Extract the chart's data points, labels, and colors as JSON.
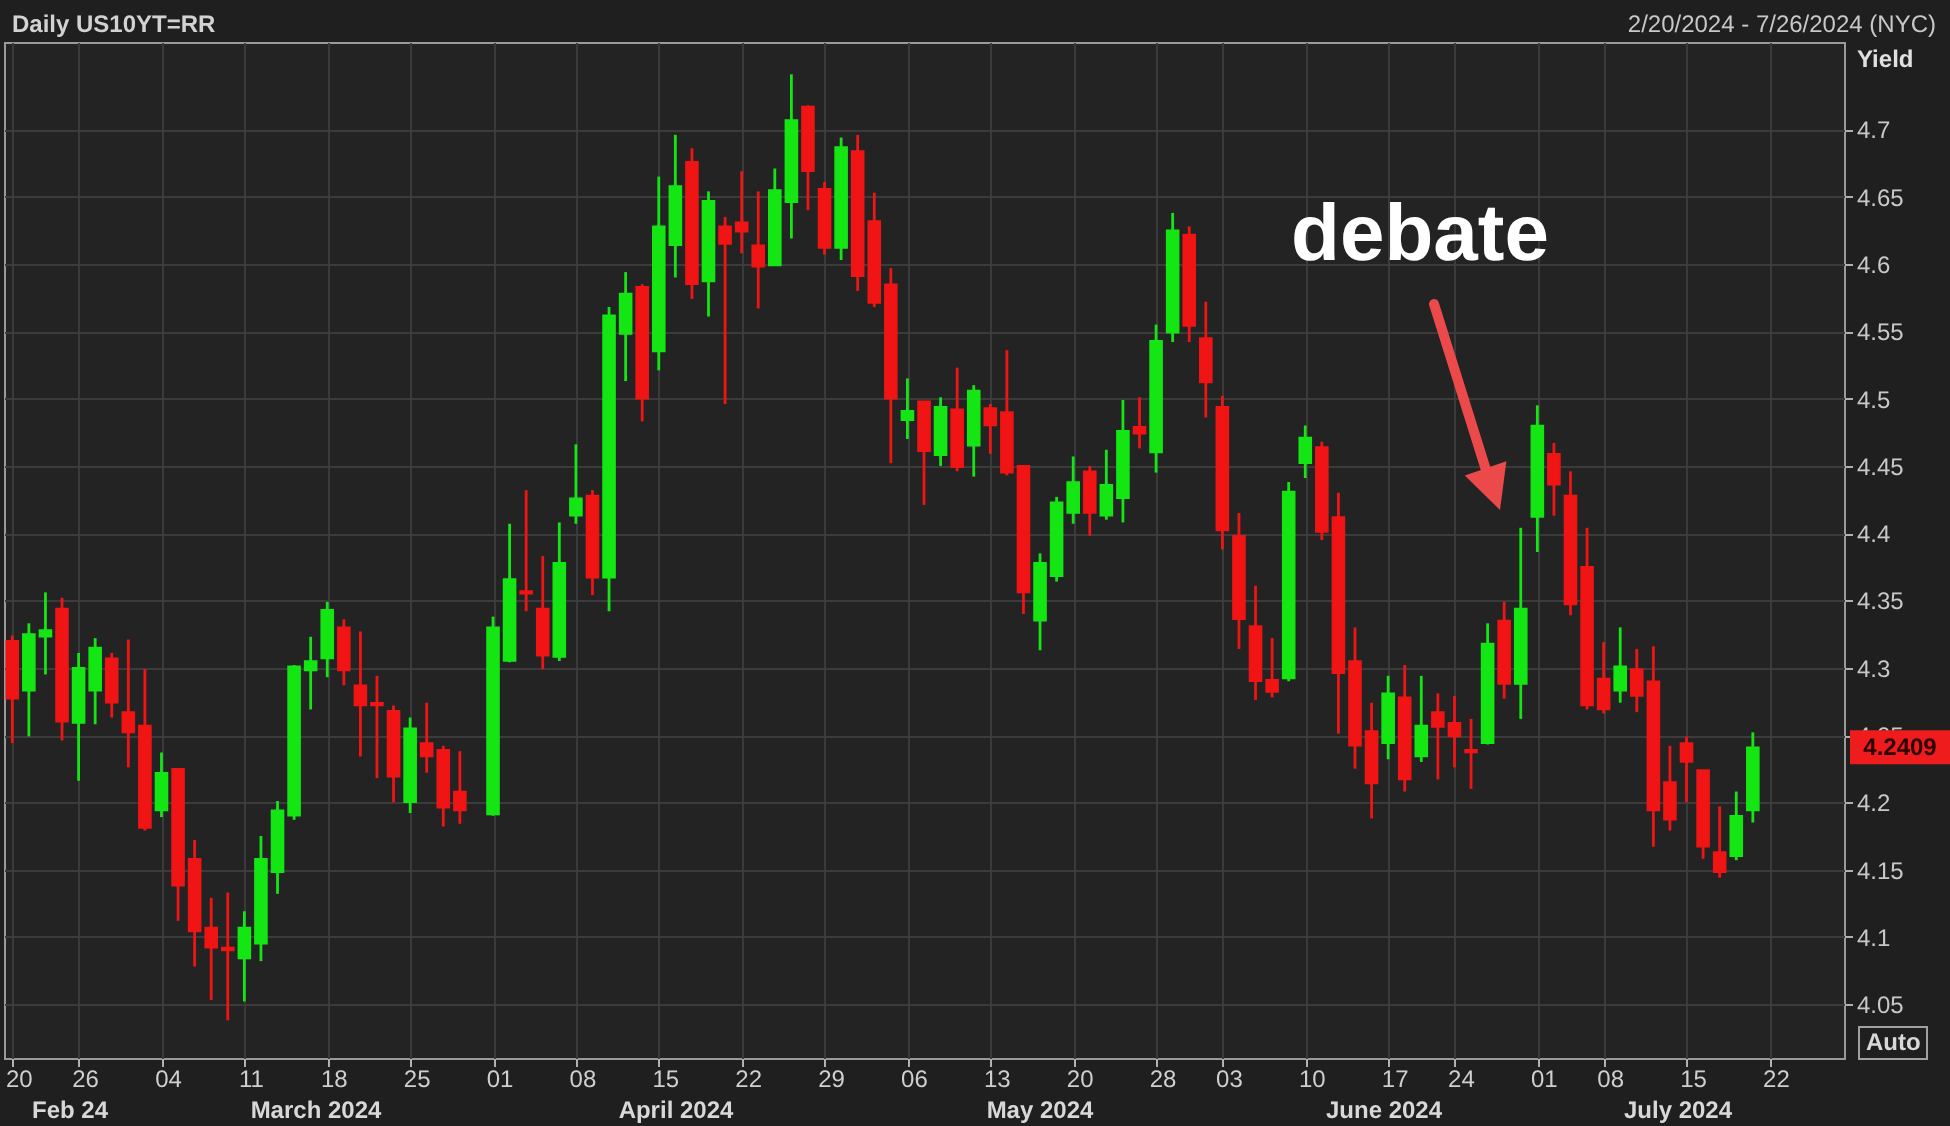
{
  "chart_data": {
    "type": "candlestick",
    "title": "Daily US10YT=RR",
    "subtitle": "2/20/2024 - 7/26/2024 (NYC)",
    "ylabel": "Yield",
    "categories": [
      "20",
      null,
      null,
      null,
      "26",
      null,
      null,
      null,
      null,
      "04",
      null,
      null,
      null,
      null,
      "11",
      null,
      null,
      null,
      null,
      "18",
      null,
      null,
      null,
      null,
      "25",
      null,
      null,
      null,
      null,
      "01",
      null,
      null,
      null,
      null,
      "08",
      null,
      null,
      null,
      null,
      "15",
      null,
      null,
      null,
      null,
      "22",
      null,
      null,
      null,
      null,
      "29",
      null,
      null,
      null,
      null,
      "06",
      null,
      null,
      null,
      null,
      "13",
      null,
      null,
      null,
      null,
      "20",
      null,
      null,
      null,
      null,
      "28",
      null,
      null,
      null,
      "03",
      null,
      null,
      null,
      null,
      "10",
      null,
      null,
      null,
      null,
      "17",
      null,
      null,
      null,
      "24",
      null,
      null,
      null,
      null,
      "01",
      null,
      null,
      null,
      "08",
      null,
      null,
      null,
      null,
      "15",
      null,
      null,
      null,
      null,
      "22",
      null,
      null,
      null,
      null
    ],
    "ohlc": [
      [
        4.32,
        4.324,
        4.244,
        4.277
      ],
      [
        4.283,
        4.333,
        4.249,
        4.325
      ],
      [
        4.323,
        4.356,
        4.295,
        4.328
      ],
      [
        4.344,
        4.352,
        4.246,
        4.26
      ],
      [
        4.259,
        4.311,
        4.216,
        4.3
      ],
      [
        4.283,
        4.322,
        4.258,
        4.315
      ],
      [
        4.307,
        4.311,
        4.263,
        4.274
      ],
      [
        4.267,
        4.321,
        4.226,
        4.252
      ],
      [
        4.257,
        4.299,
        4.179,
        4.181
      ],
      [
        4.194,
        4.237,
        4.189,
        4.222
      ],
      [
        4.225,
        4.225,
        4.112,
        4.138
      ],
      [
        4.158,
        4.172,
        4.078,
        4.104
      ],
      [
        4.107,
        4.129,
        4.053,
        4.092
      ],
      [
        4.092,
        4.133,
        4.038,
        4.09
      ],
      [
        4.084,
        4.119,
        4.052,
        4.107
      ],
      [
        4.095,
        4.175,
        4.082,
        4.158
      ],
      [
        4.148,
        4.201,
        4.132,
        4.194
      ],
      [
        4.19,
        4.302,
        4.187,
        4.301
      ],
      [
        4.298,
        4.323,
        4.269,
        4.305
      ],
      [
        4.307,
        4.349,
        4.293,
        4.343
      ],
      [
        4.33,
        4.336,
        4.287,
        4.298
      ],
      [
        4.287,
        4.327,
        4.234,
        4.272
      ],
      [
        4.274,
        4.294,
        4.218,
        4.272
      ],
      [
        4.268,
        4.272,
        4.2,
        4.219
      ],
      [
        4.2,
        4.263,
        4.192,
        4.255
      ],
      [
        4.244,
        4.274,
        4.222,
        4.234
      ],
      [
        4.239,
        4.242,
        4.182,
        4.196
      ],
      [
        4.208,
        4.238,
        4.184,
        4.194
      ],
      null,
      [
        4.191,
        4.338,
        4.19,
        4.33
      ],
      [
        4.305,
        4.407,
        4.304,
        4.366
      ],
      [
        4.357,
        4.432,
        4.342,
        4.355
      ],
      [
        4.344,
        4.383,
        4.299,
        4.309
      ],
      [
        4.308,
        4.408,
        4.305,
        4.378
      ],
      [
        4.413,
        4.466,
        4.407,
        4.426
      ],
      [
        4.428,
        4.432,
        4.354,
        4.367
      ],
      [
        4.367,
        4.568,
        4.342,
        4.562
      ],
      [
        4.548,
        4.594,
        4.513,
        4.578
      ],
      [
        4.583,
        4.585,
        4.483,
        4.5
      ],
      [
        4.535,
        4.665,
        4.521,
        4.628
      ],
      [
        4.614,
        4.696,
        4.59,
        4.658
      ],
      [
        4.676,
        4.686,
        4.574,
        4.585
      ],
      [
        4.587,
        4.654,
        4.561,
        4.647
      ],
      [
        4.628,
        4.635,
        4.496,
        4.615
      ],
      [
        4.631,
        4.669,
        4.608,
        4.624
      ],
      [
        4.614,
        4.654,
        4.567,
        4.598
      ],
      [
        4.599,
        4.671,
        4.599,
        4.655
      ],
      [
        4.646,
        4.741,
        4.619,
        4.707
      ],
      [
        4.717,
        4.718,
        4.64,
        4.669
      ],
      [
        4.656,
        4.661,
        4.607,
        4.612
      ],
      [
        4.612,
        4.694,
        4.603,
        4.687
      ],
      [
        4.684,
        4.696,
        4.58,
        4.591
      ],
      [
        4.632,
        4.653,
        4.568,
        4.571
      ],
      [
        4.585,
        4.597,
        4.452,
        4.5
      ],
      [
        4.484,
        4.515,
        4.47,
        4.491
      ],
      [
        4.498,
        4.498,
        4.421,
        4.461
      ],
      [
        4.458,
        4.501,
        4.45,
        4.494
      ],
      [
        4.492,
        4.523,
        4.446,
        4.449
      ],
      [
        4.465,
        4.51,
        4.442,
        4.506
      ],
      [
        4.493,
        4.496,
        4.459,
        4.48
      ],
      [
        4.49,
        4.536,
        4.443,
        4.445
      ],
      [
        4.45,
        4.45,
        4.34,
        4.356
      ],
      [
        4.335,
        4.385,
        4.313,
        4.378
      ],
      [
        4.368,
        4.427,
        4.364,
        4.423
      ],
      [
        4.415,
        4.457,
        4.407,
        4.438
      ],
      [
        4.446,
        4.45,
        4.398,
        4.415
      ],
      [
        4.413,
        4.462,
        4.41,
        4.436
      ],
      [
        4.426,
        4.499,
        4.408,
        4.476
      ],
      [
        4.479,
        4.501,
        4.463,
        4.474
      ],
      [
        4.46,
        4.555,
        4.445,
        4.543
      ],
      [
        4.549,
        4.638,
        4.542,
        4.625
      ],
      [
        4.622,
        4.628,
        4.542,
        4.554
      ],
      [
        4.545,
        4.572,
        4.486,
        4.512
      ],
      [
        4.494,
        4.502,
        4.388,
        4.402
      ],
      [
        4.398,
        4.415,
        4.314,
        4.336
      ],
      [
        4.331,
        4.361,
        4.276,
        4.29
      ],
      [
        4.291,
        4.322,
        4.278,
        4.282
      ],
      [
        4.292,
        4.438,
        4.29,
        4.431
      ],
      [
        4.452,
        4.48,
        4.441,
        4.471
      ],
      [
        4.464,
        4.468,
        4.395,
        4.401
      ],
      [
        4.412,
        4.43,
        4.251,
        4.296
      ],
      [
        4.305,
        4.33,
        4.225,
        4.242
      ],
      [
        4.253,
        4.274,
        4.188,
        4.214
      ],
      [
        4.244,
        4.294,
        4.232,
        4.281
      ],
      [
        4.278,
        4.302,
        4.208,
        4.217
      ],
      [
        4.234,
        4.294,
        4.23,
        4.257
      ],
      [
        4.267,
        4.281,
        4.217,
        4.256
      ],
      [
        4.259,
        4.279,
        4.226,
        4.249
      ],
      [
        4.239,
        4.262,
        4.21,
        4.237
      ],
      [
        4.244,
        4.333,
        4.243,
        4.318
      ],
      [
        4.335,
        4.349,
        4.277,
        4.288
      ],
      [
        4.288,
        4.404,
        4.262,
        4.344
      ],
      [
        4.412,
        4.495,
        4.386,
        4.48
      ],
      [
        4.459,
        4.467,
        4.413,
        4.436
      ],
      [
        4.428,
        4.446,
        4.339,
        4.347
      ],
      [
        4.375,
        4.404,
        4.269,
        4.272
      ],
      [
        4.292,
        4.319,
        4.266,
        4.269
      ],
      [
        4.283,
        4.33,
        4.274,
        4.301
      ],
      [
        4.299,
        4.314,
        4.267,
        4.279
      ],
      [
        4.29,
        4.316,
        4.167,
        4.194
      ],
      [
        4.215,
        4.242,
        4.179,
        4.187
      ],
      [
        4.244,
        4.249,
        4.2,
        4.23
      ],
      [
        4.224,
        4.224,
        4.158,
        4.167
      ],
      [
        4.163,
        4.197,
        4.144,
        4.148
      ],
      [
        4.16,
        4.208,
        4.157,
        4.19
      ],
      [
        4.194,
        4.252,
        4.185,
        4.2409
      ],
      null,
      null,
      null,
      null,
      null
    ],
    "colors": [
      "#f01414",
      "#14e614",
      "#14e614",
      "#f01414",
      "#14e614",
      "#14e614",
      "#f01414",
      "#f01414",
      "#f01414",
      "#14e614",
      "#f01414",
      "#f01414",
      "#f01414",
      "#f01414",
      "#14e614",
      "#14e614",
      "#14e614",
      "#14e614",
      "#14e614",
      "#14e614",
      "#f01414",
      "#f01414",
      "#f01414",
      "#f01414",
      "#14e614",
      "#f01414",
      "#f01414",
      "#f01414",
      null,
      "#14e614",
      "#14e614",
      "#f01414",
      "#f01414",
      "#14e614",
      "#14e614",
      "#f01414",
      "#14e614",
      "#14e614",
      "#f01414",
      "#14e614",
      "#14e614",
      "#f01414",
      "#14e614",
      "#f01414",
      "#f01414",
      "#f01414",
      "#14e614",
      "#14e614",
      "#f01414",
      "#f01414",
      "#14e614",
      "#f01414",
      "#f01414",
      "#f01414",
      "#14e614",
      "#f01414",
      "#14e614",
      "#f01414",
      "#14e614",
      "#f01414",
      "#f01414",
      "#f01414",
      "#14e614",
      "#14e614",
      "#14e614",
      "#f01414",
      "#14e614",
      "#14e614",
      "#f01414",
      "#14e614",
      "#14e614",
      "#f01414",
      "#f01414",
      "#f01414",
      "#f01414",
      "#f01414",
      "#f01414",
      "#14e614",
      "#14e614",
      "#f01414",
      "#f01414",
      "#f01414",
      "#f01414",
      "#14e614",
      "#f01414",
      "#14e614",
      "#f01414",
      "#f01414",
      "#f01414",
      "#14e614",
      "#f01414",
      "#14e614",
      "#14e614",
      "#f01414",
      "#f01414",
      "#f01414",
      "#f01414",
      "#14e614",
      "#f01414",
      "#f01414",
      "#f01414",
      "#f01414",
      "#f01414",
      "#f01414",
      "#14e614",
      "#14e614",
      null,
      null,
      null,
      null,
      null
    ],
    "ylim": [
      4.01,
      4.765
    ],
    "yticks": [
      4.05,
      4.1,
      4.15,
      4.2,
      4.25,
      4.3,
      4.35,
      4.4,
      4.45,
      4.5,
      4.55,
      4.6,
      4.65,
      4.7
    ],
    "grid": true,
    "annotations": [
      "Feb 24",
      "March 2024",
      "April 2024",
      "May 2024",
      "June 2024",
      "July 2024",
      "debate",
      "4.2409",
      "Auto"
    ]
  }
}
